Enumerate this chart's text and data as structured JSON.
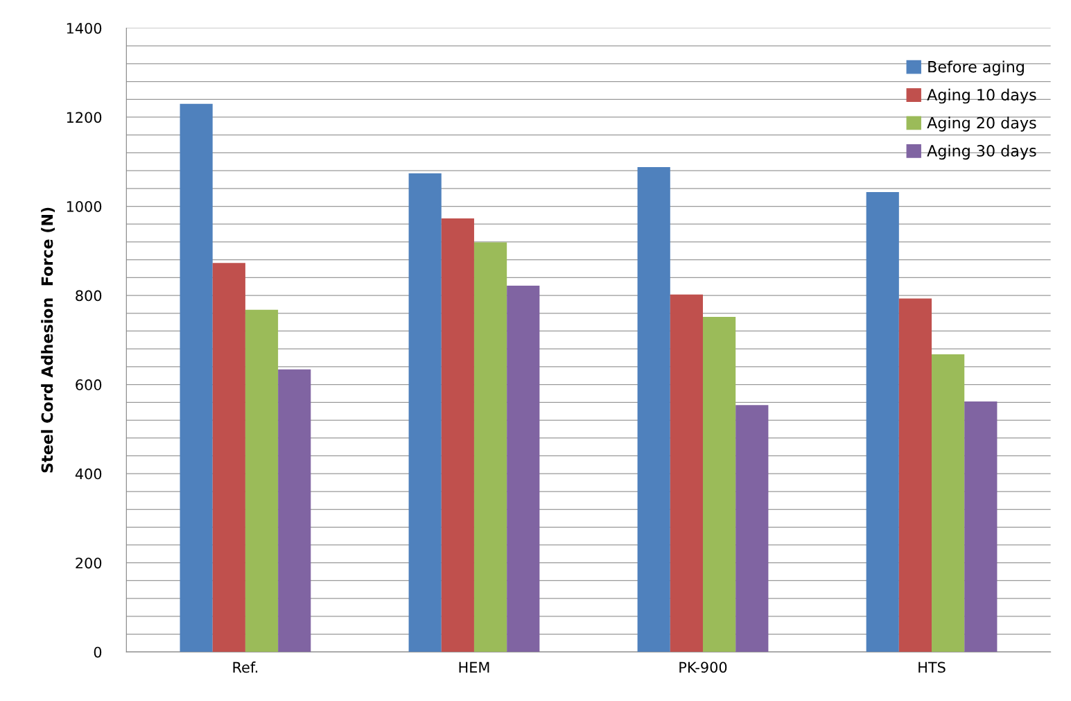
{
  "chart_data": {
    "type": "bar",
    "ylabel": "Steel Cord Adhesion  Force (N)",
    "categories": [
      "Ref.",
      "HEM",
      "PK-900",
      "HTS"
    ],
    "series": [
      {
        "name": "Before aging",
        "color": "#4f81bd",
        "values": [
          1230,
          1074,
          1088,
          1032
        ]
      },
      {
        "name": "Aging 10 days",
        "color": "#c0504d",
        "values": [
          873,
          973,
          802,
          793
        ]
      },
      {
        "name": "Aging 20 days",
        "color": "#9bbb59",
        "values": [
          768,
          919,
          752,
          668
        ]
      },
      {
        "name": "Aging 30 days",
        "color": "#8064a2",
        "values": [
          634,
          822,
          554,
          562
        ]
      }
    ],
    "ylim": [
      0,
      1400
    ],
    "yticks": [
      0,
      {
        "value": 40,
        "label": null
      },
      {
        "value": 80,
        "label": null
      },
      {
        "value": 120,
        "label": null
      },
      {
        "value": 160,
        "label": null
      },
      200,
      {
        "value": 240,
        "label": null
      },
      {
        "value": 280,
        "label": null
      },
      {
        "value": 320,
        "label": null
      },
      {
        "value": 360,
        "label": null
      },
      400,
      {
        "value": 440,
        "label": null
      },
      {
        "value": 480,
        "label": null
      },
      {
        "value": 520,
        "label": null
      },
      {
        "value": 560,
        "label": null
      },
      600,
      {
        "value": 640,
        "label": null
      },
      {
        "value": 680,
        "label": null
      },
      {
        "value": 720,
        "label": null
      },
      {
        "value": 760,
        "label": null
      },
      800,
      {
        "value": 840,
        "label": null
      },
      {
        "value": 880,
        "label": null
      },
      {
        "value": 920,
        "label": null
      },
      {
        "value": 960,
        "label": null
      },
      1000,
      {
        "value": 1040,
        "label": null
      },
      {
        "value": 1080,
        "label": null
      },
      {
        "value": 1120,
        "label": null
      },
      {
        "value": 1160,
        "label": null
      },
      1200,
      {
        "value": 1240,
        "label": null
      },
      {
        "value": 1280,
        "label": null
      },
      {
        "value": 1320,
        "label": null
      },
      {
        "value": 1360,
        "label": null
      },
      1400
    ],
    "grid": "y",
    "legend": "top right"
  }
}
